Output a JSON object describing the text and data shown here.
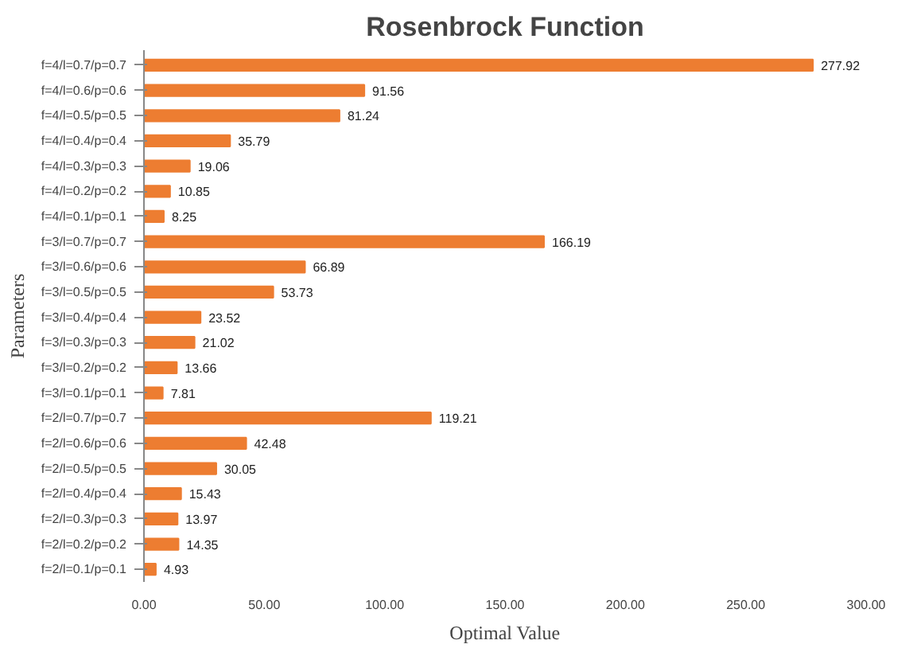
{
  "chart_data": {
    "type": "bar",
    "orientation": "horizontal",
    "title": "Rosenbrock Function",
    "xlabel": "Optimal Value",
    "ylabel": "Parameters",
    "categories": [
      "f=4/l=0.7/p=0.7",
      "f=4/l=0.6/p=0.6",
      "f=4/l=0.5/p=0.5",
      "f=4/l=0.4/p=0.4",
      "f=4/l=0.3/p=0.3",
      "f=4/l=0.2/p=0.2",
      "f=4/l=0.1/p=0.1",
      "f=3/l=0.7/p=0.7",
      "f=3/l=0.6/p=0.6",
      "f=3/l=0.5/p=0.5",
      "f=3/l=0.4/p=0.4",
      "f=3/l=0.3/p=0.3",
      "f=3/l=0.2/p=0.2",
      "f=3/l=0.1/p=0.1",
      "f=2/l=0.7/p=0.7",
      "f=2/l=0.6/p=0.6",
      "f=2/l=0.5/p=0.5",
      "f=2/l=0.4/p=0.4",
      "f=2/l=0.3/p=0.3",
      "f=2/l=0.2/p=0.2",
      "f=2/l=0.1/p=0.1"
    ],
    "values": [
      277.92,
      91.56,
      81.24,
      35.79,
      19.06,
      10.85,
      8.25,
      166.19,
      66.89,
      53.73,
      23.52,
      21.02,
      13.66,
      7.81,
      119.21,
      42.48,
      30.05,
      15.43,
      13.97,
      14.35,
      4.93
    ],
    "color": "#ed7d31",
    "data_labels": true,
    "grid": false,
    "xlim": [
      0,
      300
    ],
    "xticks": [
      {
        "value": 0,
        "label": "0.00"
      },
      {
        "value": 50,
        "label": "50.00"
      },
      {
        "value": 100,
        "label": "100.00"
      },
      {
        "value": 150,
        "label": "150.00"
      },
      {
        "value": 200,
        "label": "200.00"
      },
      {
        "value": 250,
        "label": "250.00"
      },
      {
        "value": 300,
        "label": "300.00"
      }
    ]
  }
}
